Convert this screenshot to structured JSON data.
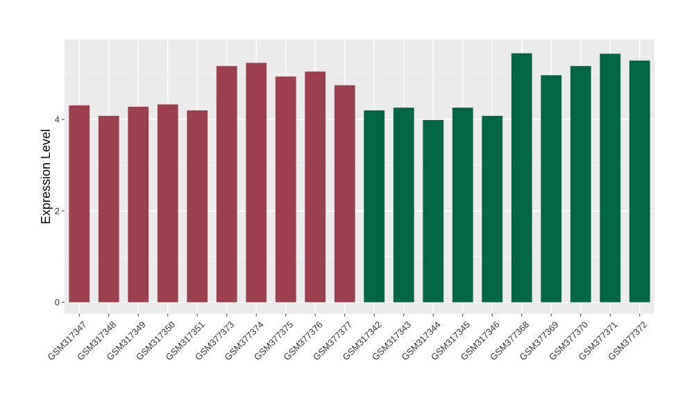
{
  "chart_data": {
    "type": "bar",
    "title": "",
    "xlabel": "",
    "ylabel": "Expression Level",
    "ylim": [
      -0.25,
      5.75
    ],
    "yticks": [
      0,
      2,
      4
    ],
    "grid": true,
    "legend": "none",
    "panel_background": "#EBEBEB",
    "categories": [
      "GSM317347",
      "GSM317348",
      "GSM317349",
      "GSM317350",
      "GSM317351",
      "GSM377373",
      "GSM377374",
      "GSM377375",
      "GSM377376",
      "GSM377377",
      "GSM317342",
      "GSM317343",
      "GSM317344",
      "GSM317345",
      "GSM317346",
      "GSM377368",
      "GSM377369",
      "GSM377370",
      "GSM377371",
      "GSM377372"
    ],
    "values": [
      4.31,
      4.08,
      4.28,
      4.33,
      4.2,
      5.17,
      5.24,
      4.94,
      5.05,
      4.75,
      4.2,
      4.26,
      3.99,
      4.26,
      4.08,
      5.45,
      4.97,
      5.17,
      5.44,
      5.29
    ],
    "bar_colors": [
      "#9C404F",
      "#9C404F",
      "#9C404F",
      "#9C404F",
      "#9C404F",
      "#9C404F",
      "#9C404F",
      "#9C404F",
      "#9C404F",
      "#9C404F",
      "#006644",
      "#006644",
      "#006644",
      "#006644",
      "#006644",
      "#006644",
      "#006644",
      "#006644",
      "#006644",
      "#006644"
    ]
  }
}
